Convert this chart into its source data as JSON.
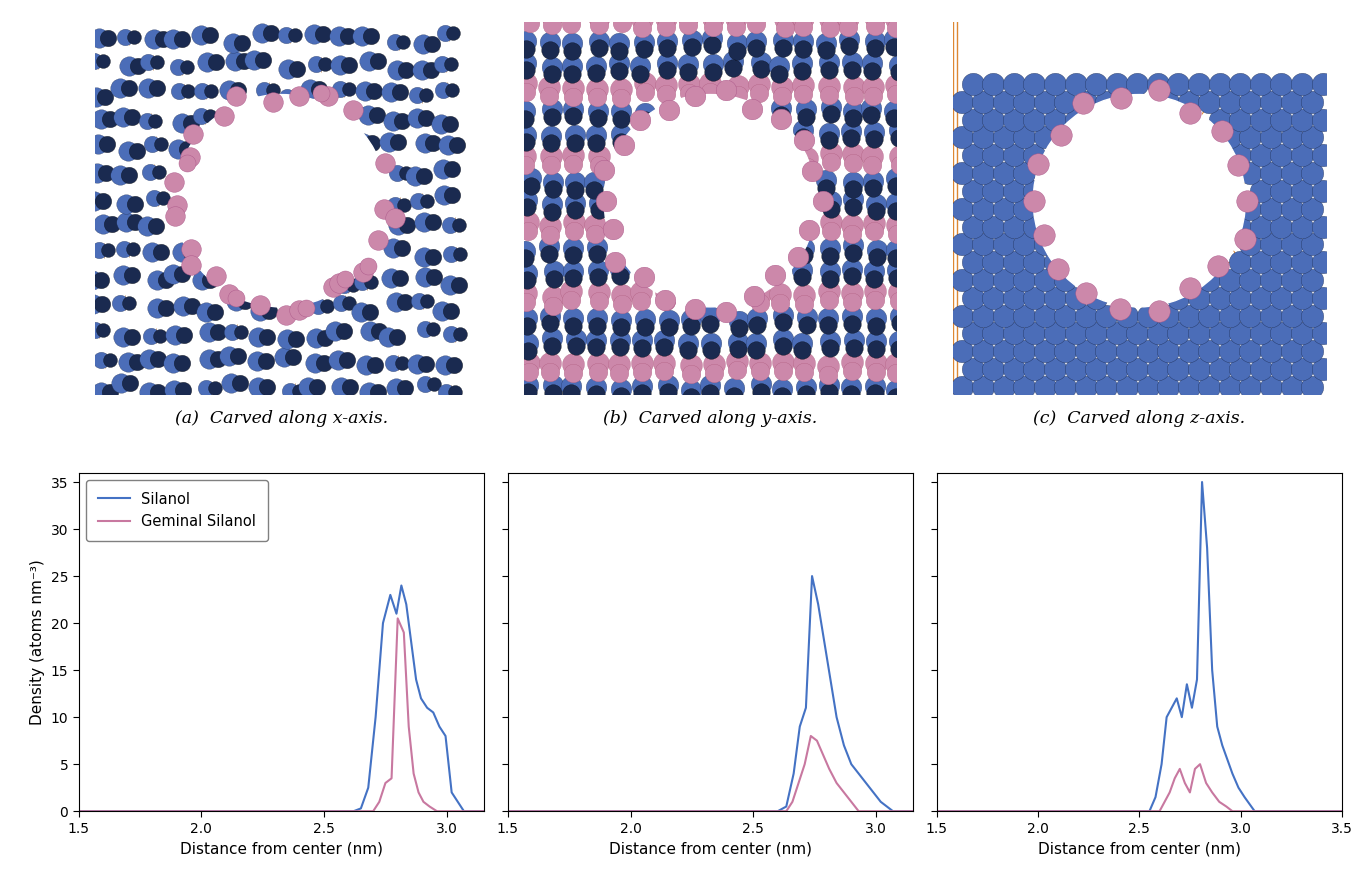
{
  "blue_color": "#4472c4",
  "pink_color": "#c878a0",
  "silanol_label": "Silanol",
  "geminal_label": "Geminal Silanol",
  "ylabel": "Density (atoms nm⁻³)",
  "xlabel": "Distance from center (nm)",
  "captions": [
    "(a)  Carved along x-axis.",
    "(b)  Carved along y-axis.",
    "(c)  Carved along z-axis."
  ],
  "plot1": {
    "xlim": [
      1.5,
      3.15
    ],
    "ylim": [
      0,
      36
    ],
    "yticks": [
      0,
      5,
      10,
      15,
      20,
      25,
      30,
      35
    ],
    "xticks": [
      1.5,
      2.0,
      2.5,
      3.0
    ],
    "blue_x": [
      1.5,
      2.62,
      2.65,
      2.68,
      2.71,
      2.74,
      2.77,
      2.795,
      2.815,
      2.835,
      2.855,
      2.875,
      2.895,
      2.92,
      2.945,
      2.97,
      2.995,
      3.02,
      3.07,
      3.15
    ],
    "blue_y": [
      0,
      0,
      0.3,
      2.5,
      10,
      20,
      23,
      21,
      24,
      22,
      18,
      14,
      12,
      11,
      10.5,
      9,
      8,
      2,
      0,
      0
    ],
    "pink_x": [
      1.5,
      2.7,
      2.725,
      2.75,
      2.775,
      2.8,
      2.825,
      2.845,
      2.865,
      2.885,
      2.905,
      2.93,
      2.96,
      3.15
    ],
    "pink_y": [
      0,
      0,
      1,
      3,
      3.5,
      20.5,
      19,
      9,
      4,
      2,
      1,
      0.5,
      0,
      0
    ]
  },
  "plot2": {
    "xlim": [
      1.5,
      3.15
    ],
    "ylim": [
      0,
      36
    ],
    "yticks": [
      0,
      5,
      10,
      15,
      20,
      25,
      30,
      35
    ],
    "xticks": [
      1.5,
      2.0,
      2.5,
      3.0
    ],
    "blue_x": [
      1.5,
      2.6,
      2.635,
      2.665,
      2.69,
      2.715,
      2.74,
      2.765,
      2.79,
      2.815,
      2.84,
      2.87,
      2.9,
      2.93,
      2.96,
      2.99,
      3.02,
      3.07,
      3.15
    ],
    "blue_y": [
      0,
      0,
      0.5,
      4,
      9,
      11,
      25,
      22,
      18,
      14,
      10,
      7,
      5,
      4,
      3,
      2,
      1,
      0,
      0
    ],
    "pink_x": [
      1.5,
      2.635,
      2.66,
      2.685,
      2.71,
      2.735,
      2.76,
      2.785,
      2.81,
      2.84,
      2.87,
      2.9,
      2.93,
      3.15
    ],
    "pink_y": [
      0,
      0,
      1,
      3,
      5,
      8,
      7.5,
      6,
      4.5,
      3,
      2,
      1,
      0,
      0
    ]
  },
  "plot3": {
    "xlim": [
      1.5,
      3.5
    ],
    "ylim": [
      0,
      36
    ],
    "yticks": [
      0,
      5,
      10,
      15,
      20,
      25,
      30,
      35
    ],
    "xticks": [
      1.5,
      2.0,
      2.5,
      3.0,
      3.5
    ],
    "blue_x": [
      1.5,
      2.55,
      2.58,
      2.61,
      2.635,
      2.66,
      2.685,
      2.71,
      2.735,
      2.76,
      2.785,
      2.81,
      2.835,
      2.86,
      2.885,
      2.91,
      2.935,
      2.96,
      2.99,
      3.02,
      3.07,
      3.5
    ],
    "blue_y": [
      0,
      0,
      1.5,
      5,
      10,
      11,
      12,
      10,
      13.5,
      11,
      14,
      35,
      28,
      15,
      9,
      7,
      5.5,
      4,
      2.5,
      1.5,
      0,
      0
    ],
    "pink_x": [
      1.5,
      2.6,
      2.625,
      2.65,
      2.675,
      2.7,
      2.725,
      2.75,
      2.775,
      2.8,
      2.83,
      2.86,
      2.895,
      2.93,
      2.96,
      3.5
    ],
    "pink_y": [
      0,
      0,
      1,
      2,
      3.5,
      4.5,
      3,
      2,
      4.5,
      5,
      3,
      2,
      1,
      0.5,
      0,
      0
    ]
  },
  "atom_blue": "#4b6db8",
  "atom_dark": "#1a2a50",
  "atom_pink": "#cc88aa",
  "bond_color": "#cc8844",
  "bg_white": "#ffffff"
}
